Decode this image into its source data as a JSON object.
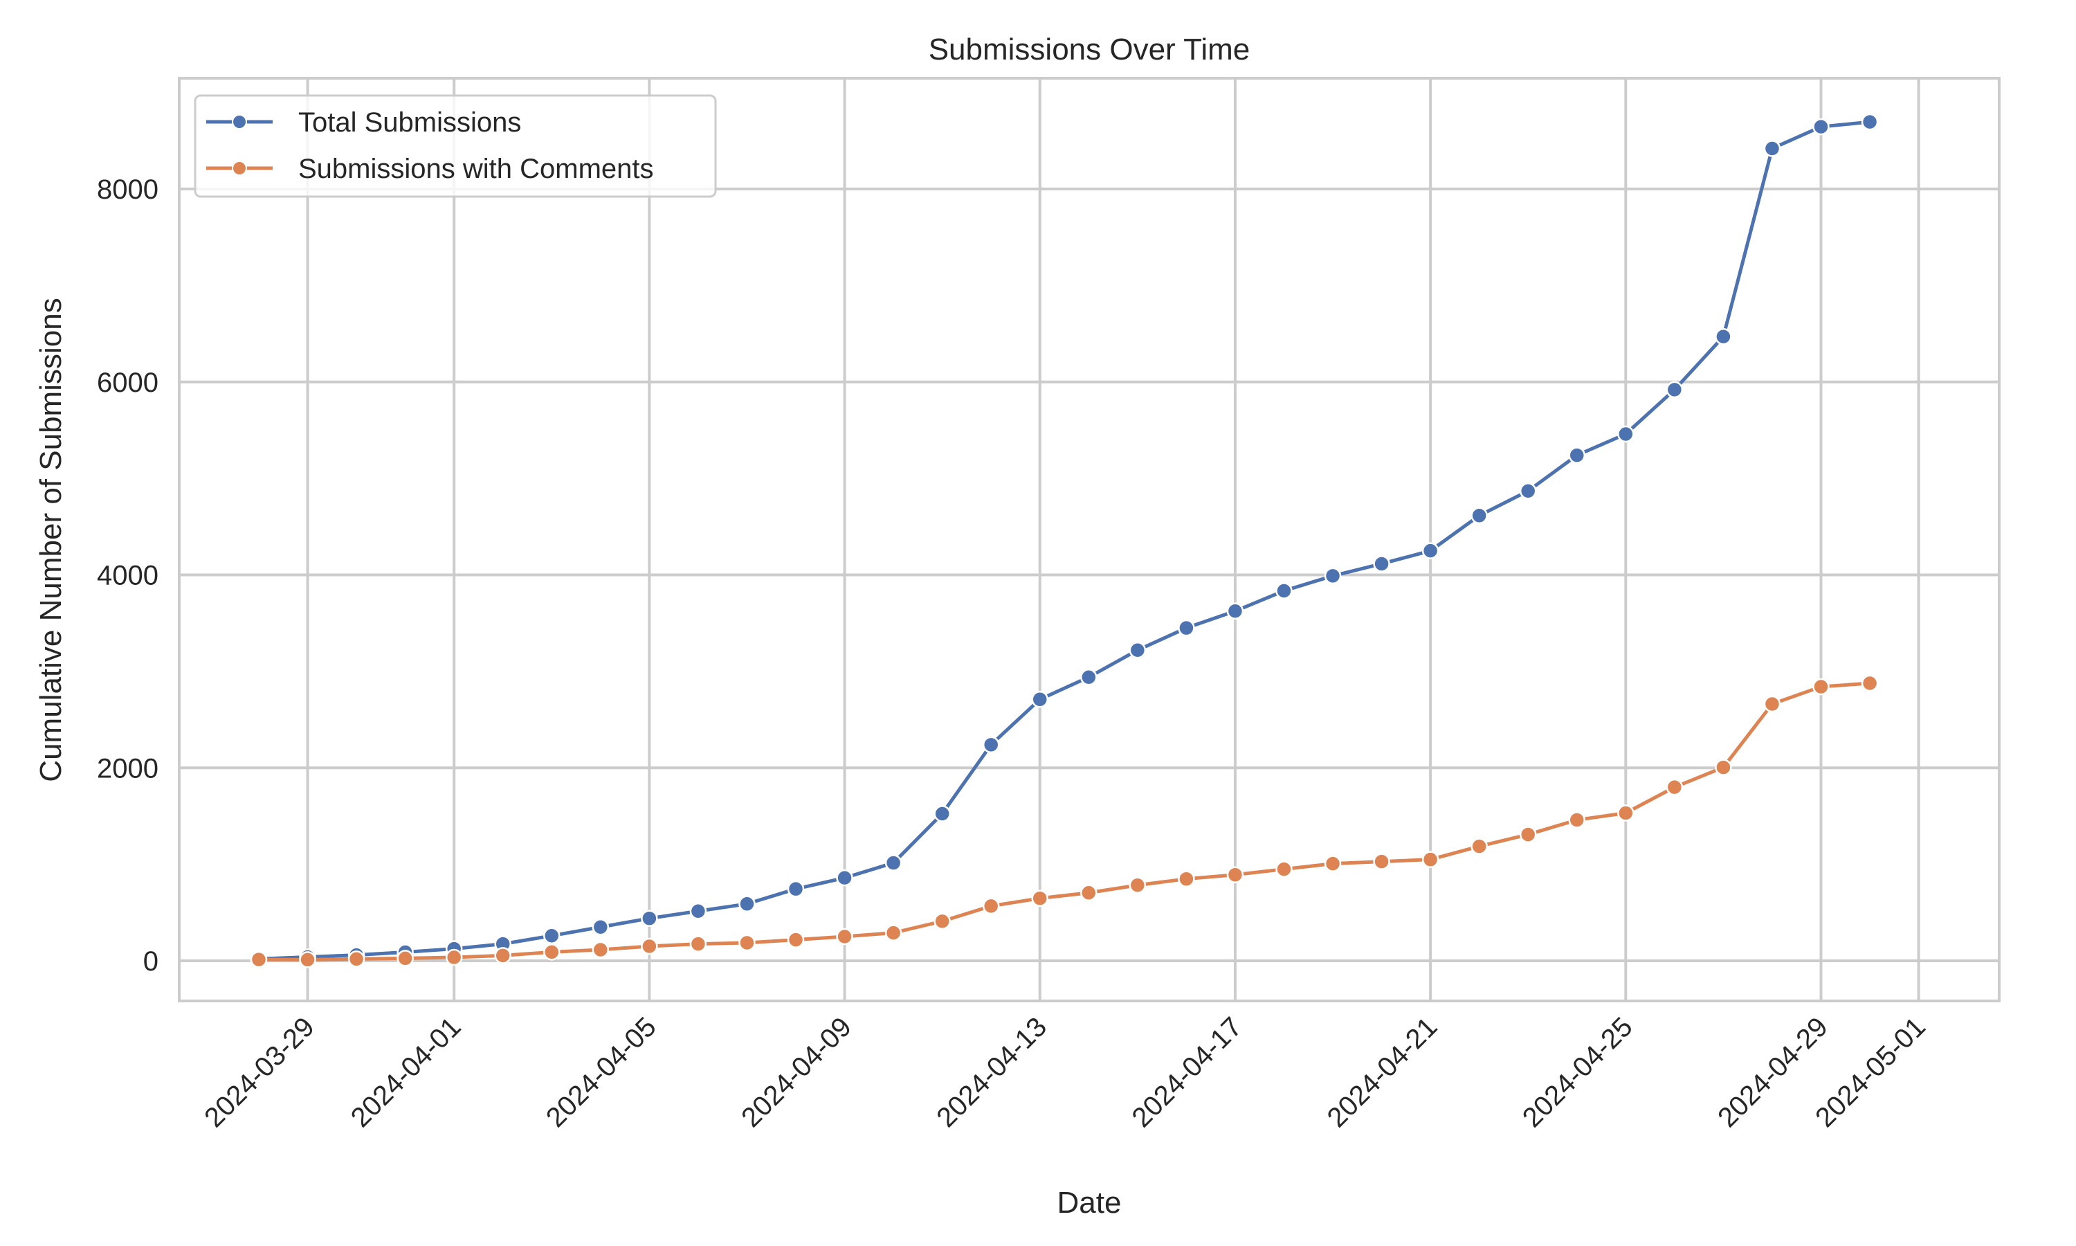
{
  "chart_data": {
    "type": "line",
    "title": "Submissions Over Time",
    "xlabel": "Date",
    "ylabel": "Cumulative Number of Submissions",
    "x": [
      "2024-03-28",
      "2024-03-29",
      "2024-03-30",
      "2024-03-31",
      "2024-04-01",
      "2024-04-02",
      "2024-04-03",
      "2024-04-04",
      "2024-04-05",
      "2024-04-06",
      "2024-04-07",
      "2024-04-08",
      "2024-04-09",
      "2024-04-10",
      "2024-04-11",
      "2024-04-12",
      "2024-04-13",
      "2024-04-14",
      "2024-04-15",
      "2024-04-16",
      "2024-04-17",
      "2024-04-18",
      "2024-04-19",
      "2024-04-20",
      "2024-04-21",
      "2024-04-22",
      "2024-04-23",
      "2024-04-24",
      "2024-04-25",
      "2024-04-26",
      "2024-04-27",
      "2024-04-28",
      "2024-04-29",
      "2024-04-30"
    ],
    "series": [
      {
        "name": "Total Submissions",
        "color": "#4C72B0",
        "marker": "circle",
        "values": [
          20,
          40,
          60,
          90,
          125,
          175,
          260,
          350,
          440,
          515,
          590,
          745,
          860,
          1015,
          1525,
          2240,
          2710,
          2940,
          3220,
          3450,
          3625,
          3835,
          3990,
          4115,
          4250,
          4615,
          4870,
          5240,
          5460,
          5920,
          6470,
          8420,
          8645,
          8695
        ]
      },
      {
        "name": "Submissions with Comments",
        "color": "#DD8452",
        "marker": "circle",
        "values": [
          14,
          12,
          19,
          26,
          36,
          55,
          91,
          115,
          151,
          175,
          187,
          218,
          251,
          290,
          410,
          568,
          648,
          705,
          784,
          849,
          892,
          950,
          1007,
          1029,
          1050,
          1187,
          1309,
          1460,
          1532,
          1800,
          2005,
          2662,
          2841,
          2877
        ]
      }
    ],
    "x_ticks": [
      "2024-03-29",
      "2024-04-01",
      "2024-04-05",
      "2024-04-09",
      "2024-04-13",
      "2024-04-17",
      "2024-04-21",
      "2024-04-25",
      "2024-04-29",
      "2024-05-01"
    ],
    "y_ticks": [
      0,
      2000,
      4000,
      6000,
      8000
    ],
    "xlim": [
      "2024-03-26T08:53",
      "2024-05-02T15:36"
    ],
    "ylim": [
      -416,
      9148
    ],
    "grid": true,
    "legend_position": "upper left",
    "x_tick_rotation": 45
  },
  "style": {
    "grid_color": "#CCCCCC",
    "text_color": "#262626",
    "background": "#FFFFFF"
  }
}
